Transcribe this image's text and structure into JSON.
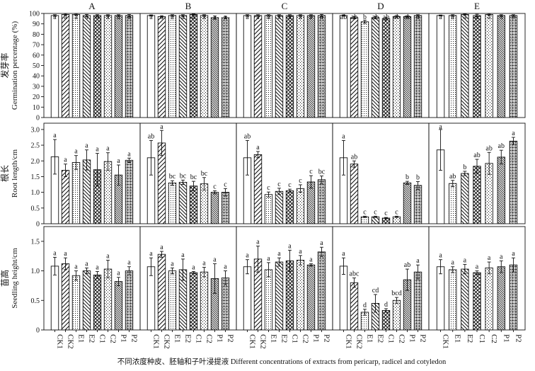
{
  "chart_data": {
    "type": "bar",
    "x_label": "不同浓度种皮、胚轴和子叶浸提液 Different concentrations of extracts from pericarp, radicel and cotyledon",
    "columns": [
      "A",
      "B",
      "C",
      "D",
      "E"
    ],
    "rows": [
      {
        "id": "germ",
        "ylabel_cn": "发芽率",
        "ylabel_en": "Germination percentage (%)",
        "ylim": [
          0,
          100
        ],
        "ticks": [
          0,
          10,
          20,
          30,
          40,
          50,
          60,
          70,
          80,
          90,
          100
        ],
        "tick_labels": [
          "0",
          "10",
          "20",
          "30",
          "40",
          "50",
          "60",
          "70",
          "80",
          "90",
          "100"
        ]
      },
      {
        "id": "root",
        "ylabel_cn": "根长",
        "ylabel_en": "Root length/cm",
        "ylim": [
          0,
          3.2
        ],
        "ticks": [
          0,
          0.5,
          1.0,
          1.5,
          2.0,
          2.5,
          3.0
        ],
        "tick_labels": [
          "0",
          "0.5",
          "1.0",
          "1.5",
          "2.0",
          "2.5",
          "3.0"
        ]
      },
      {
        "id": "seedling",
        "ylabel_cn": "苗高",
        "ylabel_en": "Seedling height/cm",
        "ylim": [
          0,
          1.75
        ],
        "ticks": [
          0,
          0.5,
          1.0,
          1.5
        ],
        "tick_labels": [
          "0",
          "0.5",
          "1.0",
          "1.5"
        ]
      }
    ],
    "treatments": {
      "A": [
        "CK1",
        "CK2",
        "E1",
        "E2",
        "C1",
        "C2",
        "P1",
        "P2"
      ],
      "B": [
        "CK1",
        "CK2",
        "E1",
        "E2",
        "C1",
        "C2",
        "P1",
        "P2"
      ],
      "C": [
        "CK1",
        "CK2",
        "E1",
        "E2",
        "C1",
        "C2",
        "P1",
        "P2"
      ],
      "D": [
        "CK1",
        "CK2",
        "E1",
        "E2",
        "C1",
        "C2",
        "P1",
        "P2"
      ],
      "E": [
        "CK1",
        "E1",
        "E2",
        "C1",
        "C2",
        "P1",
        "P2"
      ]
    },
    "patterns": {
      "CK1": "blank",
      "CK2": "diagonal",
      "E1": "dots",
      "E2": "backslash",
      "C1": "crosshatch",
      "C2": "sparse-dots",
      "P1": "dense-backslash",
      "P2": "grid-dots"
    },
    "panels": {
      "germ": {
        "A": {
          "values": [
            98,
            99,
            99,
            98,
            98,
            98,
            98,
            98
          ],
          "errors": [
            0.8,
            0.8,
            0.8,
            1,
            0.8,
            0.8,
            0.8,
            1
          ],
          "letters": [
            "a",
            "a",
            "a",
            "a",
            "a",
            "a",
            "a",
            "a"
          ]
        },
        "B": {
          "values": [
            98,
            97,
            98,
            98,
            99,
            98,
            96,
            96
          ],
          "errors": [
            0.6,
            0.8,
            0.8,
            0.8,
            0.6,
            0.8,
            1.5,
            1.2
          ],
          "letters": [
            "a",
            "a",
            "a",
            "a",
            "a",
            "a",
            "a",
            "a"
          ]
        },
        "C": {
          "values": [
            98,
            98,
            98,
            98,
            98,
            98,
            98,
            98
          ],
          "errors": [
            0.8,
            0.8,
            0.8,
            0.8,
            0.8,
            0.8,
            0.8,
            1
          ],
          "letters": [
            "a",
            "a",
            "a",
            "a",
            "a",
            "a",
            "a",
            "a"
          ]
        },
        "D": {
          "values": [
            98,
            96,
            92,
            96,
            95,
            97,
            97,
            98
          ],
          "errors": [
            0.6,
            1.2,
            1.5,
            1.2,
            1.2,
            1,
            0.8,
            0.8
          ],
          "letters": [
            "ab",
            "ab",
            "b",
            "ab",
            "ab",
            "ab",
            "ab",
            "a"
          ]
        },
        "E": {
          "values": [
            98,
            98,
            99,
            98,
            99,
            98,
            98
          ],
          "errors": [
            0.5,
            0.8,
            0.5,
            1.2,
            0.8,
            0.8,
            0.8
          ],
          "letters": [
            "a",
            "a",
            "a",
            "a",
            "a",
            "a",
            "a"
          ]
        }
      },
      "root": {
        "A": {
          "values": [
            2.13,
            1.7,
            1.95,
            2.03,
            1.72,
            1.98,
            1.55,
            2.02
          ],
          "errors": [
            0.55,
            0.2,
            0.22,
            0.32,
            0.52,
            0.28,
            0.32,
            0.07
          ],
          "letters": [
            "a",
            "a",
            "a",
            "a",
            "a",
            "a",
            "a",
            "a"
          ]
        },
        "B": {
          "values": [
            2.1,
            2.57,
            1.3,
            1.32,
            1.2,
            1.27,
            1.0,
            1.0
          ],
          "errors": [
            0.55,
            0.4,
            0.07,
            0.07,
            0.15,
            0.2,
            0.05,
            0.12
          ],
          "letters": [
            "ab",
            "a",
            "bc",
            "bc",
            "bc",
            "bc",
            "c",
            "c"
          ]
        },
        "C": {
          "values": [
            2.1,
            2.2,
            0.93,
            1.03,
            1.05,
            1.12,
            1.33,
            1.4
          ],
          "errors": [
            0.55,
            0.1,
            0.08,
            0.1,
            0.05,
            0.12,
            0.2,
            0.12
          ],
          "letters": [
            "ab",
            "a",
            "c",
            "c",
            "c",
            "c",
            "c",
            "bc"
          ]
        },
        "D": {
          "values": [
            2.1,
            1.9,
            0.22,
            0.22,
            0.18,
            0.22,
            1.3,
            1.22
          ],
          "errors": [
            0.55,
            0.1,
            0.02,
            0.02,
            0.02,
            0.02,
            0.05,
            0.12
          ],
          "letters": [
            "a",
            "ab",
            "c",
            "c",
            "c",
            "c",
            "b",
            "b"
          ]
        },
        "E": {
          "values": [
            2.35,
            1.28,
            1.6,
            1.83,
            1.92,
            2.12,
            2.63
          ],
          "errors": [
            0.65,
            0.1,
            0.07,
            0.22,
            0.35,
            0.22,
            0.12
          ],
          "letters": [
            "a",
            "ab",
            "b",
            "ab",
            "ab",
            "ab",
            "a"
          ]
        }
      },
      "seedling": {
        "A": {
          "values": [
            1.08,
            1.12,
            0.92,
            1.0,
            0.93,
            1.03,
            0.82,
            1.0
          ],
          "errors": [
            0.15,
            0.1,
            0.08,
            0.05,
            0.06,
            0.15,
            0.07,
            0.07
          ],
          "letters": [
            "a",
            "a",
            "a",
            "a",
            "a",
            "a",
            "a",
            "a"
          ]
        },
        "B": {
          "values": [
            1.07,
            1.28,
            1.0,
            1.02,
            0.97,
            0.98,
            0.87,
            0.88
          ],
          "errors": [
            0.15,
            0.05,
            0.05,
            0.18,
            0.02,
            0.08,
            0.25,
            0.12
          ],
          "letters": [
            "a",
            "a",
            "a",
            "a",
            "a",
            "a",
            "a",
            "a"
          ]
        },
        "C": {
          "values": [
            1.07,
            1.2,
            1.02,
            1.15,
            1.17,
            1.18,
            1.1,
            1.32
          ],
          "errors": [
            0.12,
            0.22,
            0.12,
            0.07,
            0.18,
            0.08,
            0.02,
            0.08
          ],
          "letters": [
            "a",
            "a",
            "a",
            "a",
            "a",
            "a",
            "a",
            "a"
          ]
        },
        "D": {
          "values": [
            1.08,
            0.8,
            0.3,
            0.45,
            0.33,
            0.5,
            0.85,
            0.98
          ],
          "errors": [
            0.14,
            0.08,
            0.05,
            0.15,
            0.03,
            0.05,
            0.18,
            0.12
          ],
          "letters": [
            "a",
            "abc",
            "d",
            "cd",
            "d",
            "bcd",
            "ab",
            "a"
          ]
        },
        "E": {
          "values": [
            1.07,
            1.02,
            1.03,
            0.97,
            1.05,
            1.07,
            1.1
          ],
          "errors": [
            0.12,
            0.05,
            0.08,
            0.03,
            0.1,
            0.1,
            0.12
          ],
          "letters": [
            "a",
            "a",
            "a",
            "a",
            "a",
            "a",
            "a"
          ]
        }
      }
    }
  }
}
